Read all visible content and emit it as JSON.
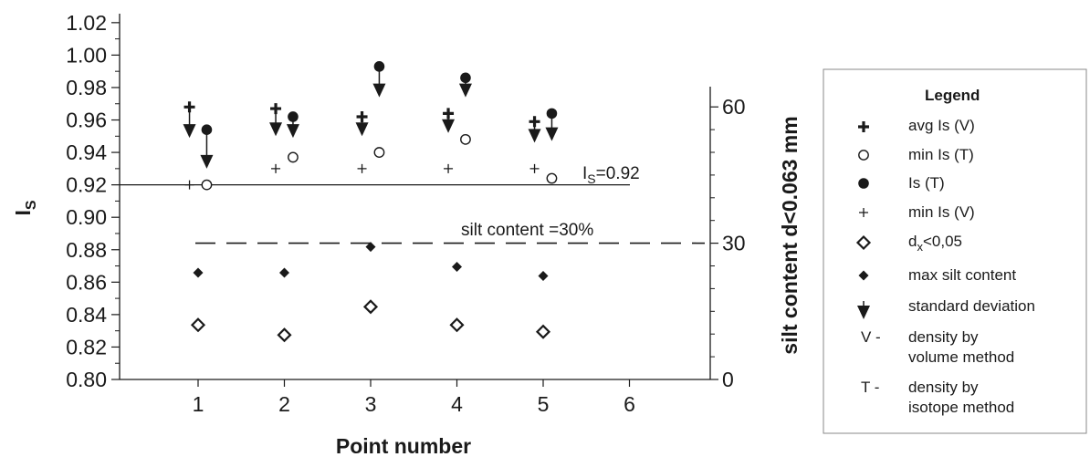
{
  "chart_data": {
    "type": "scatter",
    "xlabel": "Point number",
    "ylabel_main": "I",
    "ylabel_sub": "S",
    "y2label": "silt content d<0.063 mm",
    "xlim": [
      0,
      7
    ],
    "ylim": [
      0.8,
      1.025
    ],
    "y2lim": [
      0,
      63.7
    ],
    "x_ticks": [
      "1",
      "2",
      "3",
      "4",
      "5",
      "6"
    ],
    "y_ticks": [
      "0.80",
      "0.82",
      "0.84",
      "0.86",
      "0.88",
      "0.90",
      "0.92",
      "0.94",
      "0.96",
      "0.98",
      "1.00",
      "1.02"
    ],
    "y2_ticks": [
      "0",
      "30",
      "60"
    ],
    "series": [
      {
        "name": "avg Is (V)",
        "marker": "bold-plus",
        "points": [
          [
            0.9,
            0.968
          ],
          [
            1.9,
            0.967
          ],
          [
            2.9,
            0.962
          ],
          [
            3.9,
            0.964
          ],
          [
            4.9,
            0.959
          ]
        ],
        "std_end": [
          0.949,
          0.95,
          0.95,
          0.952,
          0.946
        ]
      },
      {
        "name": "Is (T)",
        "marker": "filled-circle",
        "points": [
          [
            1.1,
            0.954
          ],
          [
            2.1,
            0.962
          ],
          [
            3.1,
            0.993
          ],
          [
            4.1,
            0.986
          ],
          [
            5.1,
            0.964
          ]
        ],
        "std_end": [
          0.93,
          0.949,
          0.974,
          0.974,
          0.947
        ]
      },
      {
        "name": "min Is (T)",
        "marker": "open-circle",
        "points": [
          [
            1.1,
            0.92
          ],
          [
            2.1,
            0.937
          ],
          [
            3.1,
            0.94
          ],
          [
            4.1,
            0.948
          ],
          [
            5.1,
            0.924
          ]
        ]
      },
      {
        "name": "min Is (V)",
        "marker": "thin-plus",
        "points": [
          [
            0.9,
            0.92
          ],
          [
            1.9,
            0.93
          ],
          [
            2.9,
            0.93
          ],
          [
            3.9,
            0.93
          ],
          [
            4.9,
            0.93
          ]
        ]
      },
      {
        "name": "dx<0,05",
        "marker": "open-diamond",
        "axis": "y2",
        "points": [
          [
            1,
            12.0
          ],
          [
            2,
            9.8
          ],
          [
            3,
            16.0
          ],
          [
            4,
            12.0
          ],
          [
            5,
            10.5
          ]
        ]
      },
      {
        "name": "max silt content",
        "marker": "filled-diamond",
        "axis": "y2",
        "points": [
          [
            1,
            23.5
          ],
          [
            2,
            23.5
          ],
          [
            3,
            29.2
          ],
          [
            4,
            24.8
          ],
          [
            5,
            22.8
          ]
        ]
      }
    ],
    "reference_lines": [
      {
        "label_main": "I",
        "label_sub": "S",
        "label_rest": "=0.92",
        "y": 0.92,
        "style": "solid"
      },
      {
        "label": "silt content =30%",
        "y2": 30,
        "style": "dashed"
      }
    ],
    "legend": {
      "title": "Legend",
      "position": "right",
      "items": [
        {
          "marker": "bold-plus",
          "label": "avg Is (V)"
        },
        {
          "marker": "open-circle",
          "label": "min Is (T)"
        },
        {
          "marker": "filled-circle",
          "label": "Is (T)"
        },
        {
          "marker": "thin-plus",
          "label": "min Is (V)"
        },
        {
          "marker": "open-diamond",
          "label_main": "d",
          "label_sub": "x",
          "label_rest": "<0,05"
        },
        {
          "marker": "filled-diamond",
          "label": "max silt content"
        },
        {
          "marker": "arrow-down",
          "label": "standard deviation"
        }
      ],
      "notes": [
        {
          "key": "V -",
          "lines": [
            "density by",
            "volume method"
          ]
        },
        {
          "key": "T -",
          "lines": [
            "density by",
            "isotope method"
          ]
        }
      ]
    }
  }
}
